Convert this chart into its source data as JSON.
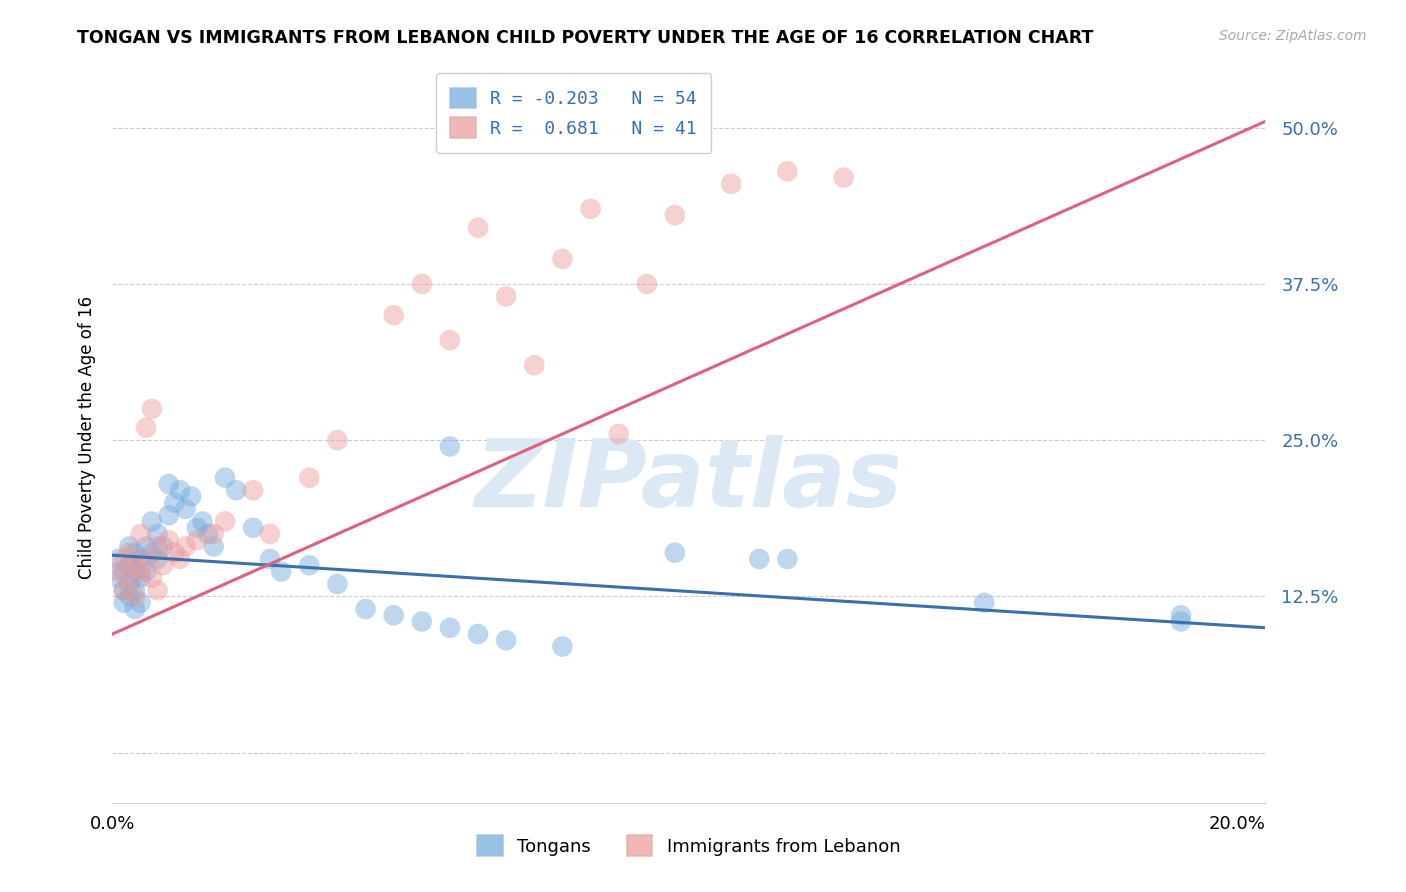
{
  "title": "TONGAN VS IMMIGRANTS FROM LEBANON CHILD POVERTY UNDER THE AGE OF 16 CORRELATION CHART",
  "source": "Source: ZipAtlas.com",
  "ylabel": "Child Poverty Under the Age of 16",
  "xlim": [
    0.0,
    0.205
  ],
  "ylim": [
    -0.04,
    0.545
  ],
  "yticks": [
    0.0,
    0.125,
    0.25,
    0.375,
    0.5
  ],
  "ytick_labels": [
    "",
    "12.5%",
    "25.0%",
    "37.5%",
    "50.0%"
  ],
  "xtick_vals": [
    0.0,
    0.05,
    0.1,
    0.15,
    0.2
  ],
  "xtick_labels": [
    "0.0%",
    "",
    "",
    "",
    "20.0%"
  ],
  "legend_blue_label": "R = -0.203   N = 54",
  "legend_pink_label": "R =  0.681   N = 41",
  "legend_label_blue": "Tongans",
  "legend_label_pink": "Immigrants from Lebanon",
  "blue_color": "#6fa8dc",
  "pink_color": "#ea9999",
  "blue_line_color": "#3c6fad",
  "pink_line_color": "#e06080",
  "watermark": "ZIPatlas",
  "watermark_color": "#dde8f5",
  "background_color": "#ffffff",
  "blue_scatter": {
    "x": [
      0.001,
      0.001,
      0.002,
      0.002,
      0.002,
      0.003,
      0.003,
      0.003,
      0.003,
      0.004,
      0.004,
      0.004,
      0.004,
      0.005,
      0.005,
      0.005,
      0.006,
      0.006,
      0.007,
      0.007,
      0.008,
      0.008,
      0.009,
      0.01,
      0.01,
      0.011,
      0.012,
      0.013,
      0.014,
      0.015,
      0.016,
      0.017,
      0.018,
      0.02,
      0.022,
      0.025,
      0.028,
      0.03,
      0.035,
      0.04,
      0.045,
      0.05,
      0.055,
      0.06,
      0.065,
      0.07,
      0.08,
      0.1,
      0.115,
      0.12,
      0.155,
      0.19,
      0.19,
      0.06
    ],
    "y": [
      0.155,
      0.14,
      0.145,
      0.13,
      0.12,
      0.165,
      0.15,
      0.135,
      0.125,
      0.16,
      0.145,
      0.13,
      0.115,
      0.155,
      0.14,
      0.12,
      0.165,
      0.145,
      0.185,
      0.16,
      0.175,
      0.155,
      0.165,
      0.215,
      0.19,
      0.2,
      0.21,
      0.195,
      0.205,
      0.18,
      0.185,
      0.175,
      0.165,
      0.22,
      0.21,
      0.18,
      0.155,
      0.145,
      0.15,
      0.135,
      0.115,
      0.11,
      0.105,
      0.1,
      0.095,
      0.09,
      0.085,
      0.16,
      0.155,
      0.155,
      0.12,
      0.11,
      0.105,
      0.245
    ]
  },
  "pink_scatter": {
    "x": [
      0.001,
      0.002,
      0.002,
      0.003,
      0.003,
      0.004,
      0.004,
      0.005,
      0.005,
      0.006,
      0.006,
      0.007,
      0.007,
      0.008,
      0.008,
      0.009,
      0.01,
      0.011,
      0.012,
      0.013,
      0.015,
      0.018,
      0.02,
      0.025,
      0.028,
      0.035,
      0.04,
      0.05,
      0.055,
      0.06,
      0.065,
      0.07,
      0.075,
      0.08,
      0.085,
      0.09,
      0.095,
      0.1,
      0.11,
      0.12,
      0.13
    ],
    "y": [
      0.145,
      0.13,
      0.155,
      0.14,
      0.16,
      0.125,
      0.15,
      0.175,
      0.145,
      0.26,
      0.155,
      0.275,
      0.14,
      0.165,
      0.13,
      0.15,
      0.17,
      0.16,
      0.155,
      0.165,
      0.17,
      0.175,
      0.185,
      0.21,
      0.175,
      0.22,
      0.25,
      0.35,
      0.375,
      0.33,
      0.42,
      0.365,
      0.31,
      0.395,
      0.435,
      0.255,
      0.375,
      0.43,
      0.455,
      0.465,
      0.46
    ]
  },
  "blue_line": {
    "x0": 0.0,
    "x1": 0.205,
    "y0": 0.158,
    "y1": 0.1
  },
  "pink_line": {
    "x0": 0.0,
    "x1": 0.205,
    "y0": 0.095,
    "y1": 0.505
  }
}
